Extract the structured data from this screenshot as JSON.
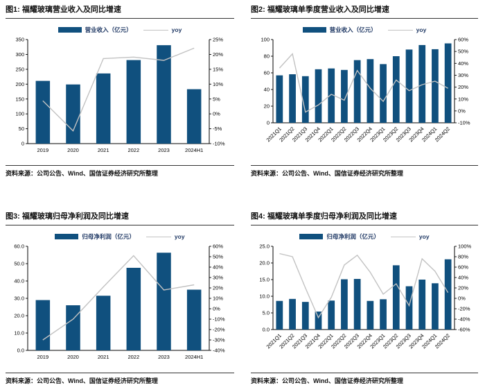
{
  "colors": {
    "bar": "#10507E",
    "line": "#C2C2C2",
    "axis": "#000000",
    "text": "#000000",
    "legendText": "#1F3864",
    "titleText": "#111111",
    "rule": "#333333"
  },
  "source_note": "资料来源：公司公告、Wind、国信证券经济研究所整理",
  "panels": [
    {
      "title": "图1: 福耀玻璃营业收入及同比增速",
      "legend": {
        "bar": "营业收入（亿元）",
        "line": "yoy"
      },
      "source": "资料来源：公司公告、Wind、国信证券经济研究所整理"
    },
    {
      "title": "图2: 福耀玻璃单季度营业收入及同比增速",
      "legend": {
        "bar": "营业收入（亿元）",
        "line": "yoy"
      },
      "source": "资料来源：公司公告、Wind、国信证券经济研究所整理"
    },
    {
      "title": "图3: 福耀玻璃归母净利润及同比增速",
      "legend": {
        "bar": "归母净利润（亿元）",
        "line": "yoy"
      },
      "source": "资料来源：公司公告、Wind、国信证券经济研究所整理"
    },
    {
      "title": "图4: 福耀玻璃单季度归母净利润及同比增速",
      "legend": {
        "bar": "归母净利润（亿元）",
        "line": "yoy"
      },
      "source": "资料来源：公司公告、Wind、国信证券经济研究所整理"
    }
  ],
  "chart_data": [
    {
      "type": "bar",
      "title": "图1: 福耀玻璃营业收入及同比增速",
      "categories": [
        "2019",
        "2020",
        "2021",
        "2022",
        "2023",
        "2024H1"
      ],
      "series": [
        {
          "name": "营业收入（亿元）",
          "type": "bar",
          "axis": "left",
          "values": [
            211,
            199,
            236,
            281,
            331,
            183
          ]
        },
        {
          "name": "yoy",
          "type": "line",
          "axis": "right",
          "values": [
            4.4,
            -5.7,
            18.6,
            19.1,
            18.0,
            22.1
          ]
        }
      ],
      "left_axis": {
        "min": 0,
        "max": 350,
        "step": 50,
        "decimals": 0
      },
      "right_axis": {
        "min": -10,
        "max": 25,
        "step": 5,
        "unit": "%"
      },
      "rotated_labels": false,
      "grid": false,
      "legend_position": "top"
    },
    {
      "type": "bar",
      "title": "图2: 福耀玻璃单季度营业收入及同比增速",
      "categories": [
        "2021Q1",
        "2021Q2",
        "2021Q3",
        "2021Q4",
        "2022Q1",
        "2022Q2",
        "2022Q3",
        "2022Q4",
        "2023Q1",
        "2023Q2",
        "2023Q3",
        "2023Q4",
        "2024Q1",
        "2024Q2"
      ],
      "series": [
        {
          "name": "营业收入（亿元）",
          "type": "bar",
          "axis": "left",
          "values": [
            57,
            58.3,
            56,
            64.3,
            65.3,
            63.5,
            75.3,
            76.5,
            70.5,
            80,
            88,
            93.4,
            88.4,
            95.4
          ]
        },
        {
          "name": "yoy",
          "type": "line",
          "axis": "right",
          "values": [
            36,
            48,
            -1,
            5,
            14,
            9,
            34,
            19,
            8,
            26,
            17,
            22,
            25,
            19
          ]
        }
      ],
      "left_axis": {
        "min": 0,
        "max": 100,
        "step": 20,
        "decimals": 0
      },
      "right_axis": {
        "min": -10,
        "max": 60,
        "step": 10,
        "unit": "%"
      },
      "rotated_labels": true,
      "grid": false,
      "legend_position": "top"
    },
    {
      "type": "bar",
      "title": "图3: 福耀玻璃归母净利润及同比增速",
      "categories": [
        "2019",
        "2020",
        "2021",
        "2022",
        "2023",
        "2024H1"
      ],
      "series": [
        {
          "name": "归母净利润（亿元）",
          "type": "bar",
          "axis": "left",
          "values": [
            29.0,
            26.0,
            31.5,
            47.6,
            56.3,
            35.0
          ]
        },
        {
          "name": "yoy",
          "type": "line",
          "axis": "right",
          "values": [
            -30,
            -10,
            21,
            51,
            18,
            23
          ]
        }
      ],
      "left_axis": {
        "min": 0,
        "max": 60,
        "step": 10,
        "decimals": 1
      },
      "right_axis": {
        "min": -40,
        "max": 60,
        "step": 10,
        "unit": "%"
      },
      "rotated_labels": false,
      "grid": false,
      "legend_position": "top"
    },
    {
      "type": "bar",
      "title": "图4: 福耀玻璃单季度归母净利润及同比增速",
      "categories": [
        "2021Q1",
        "2021Q2",
        "2021Q3",
        "2021Q4",
        "2022Q1",
        "2022Q2",
        "2022Q3",
        "2022Q4",
        "2023Q1",
        "2023Q2",
        "2023Q3",
        "2023Q4",
        "2024Q1",
        "2024Q2"
      ],
      "series": [
        {
          "name": "归母净利润（亿元）",
          "type": "bar",
          "axis": "left",
          "values": [
            8.6,
            9.2,
            8.3,
            5.4,
            8.7,
            15.1,
            15.2,
            8.6,
            9.1,
            19.3,
            13.0,
            15.0,
            13.9,
            21.1
          ]
        },
        {
          "name": "yoy",
          "type": "line",
          "axis": "right",
          "values": [
            86,
            80,
            20,
            -37,
            2,
            64,
            83,
            50,
            8,
            28,
            -14,
            76,
            52,
            11
          ]
        }
      ],
      "left_axis": {
        "min": 0,
        "max": 25,
        "step": 5,
        "decimals": 1
      },
      "right_axis": {
        "min": -60,
        "max": 100,
        "step": 20,
        "unit": "%"
      },
      "rotated_labels": true,
      "grid": false,
      "legend_position": "top"
    }
  ]
}
